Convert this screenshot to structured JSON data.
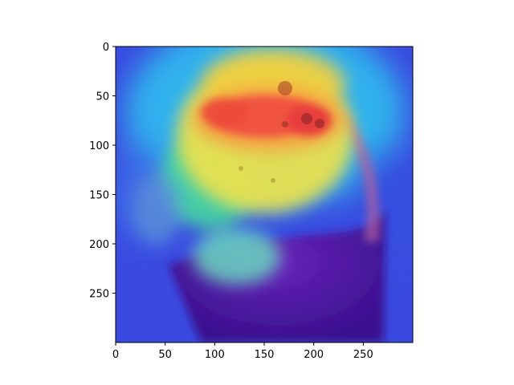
{
  "chart_data": {
    "type": "heatmap",
    "title": "",
    "xlabel": "",
    "ylabel": "",
    "xlim": [
      0,
      300
    ],
    "ylim": [
      300,
      0
    ],
    "x_ticks": [
      0,
      50,
      100,
      150,
      200,
      250
    ],
    "y_ticks": [
      0,
      50,
      100,
      150,
      200,
      250
    ],
    "x_tick_labels": [
      "0",
      "50",
      "100",
      "150",
      "200",
      "250"
    ],
    "y_tick_labels": [
      "0",
      "50",
      "100",
      "150",
      "200",
      "250"
    ],
    "y_axis_inverted": true,
    "grid": false,
    "colormap": "jet",
    "background_image": "ice cream scoop in bowl",
    "hotspots": [
      {
        "x": 160,
        "y": 75,
        "intensity": 1.0
      },
      {
        "x": 120,
        "y": 80,
        "intensity": 0.92
      },
      {
        "x": 200,
        "y": 75,
        "intensity": 0.9
      },
      {
        "x": 165,
        "y": 130,
        "intensity": 0.75
      },
      {
        "x": 120,
        "y": 140,
        "intensity": 0.55
      },
      {
        "x": 230,
        "y": 200,
        "intensity": 0.45
      },
      {
        "x": 70,
        "y": 170,
        "intensity": 0.35
      },
      {
        "x": 150,
        "y": 250,
        "intensity": 0.05
      }
    ]
  }
}
